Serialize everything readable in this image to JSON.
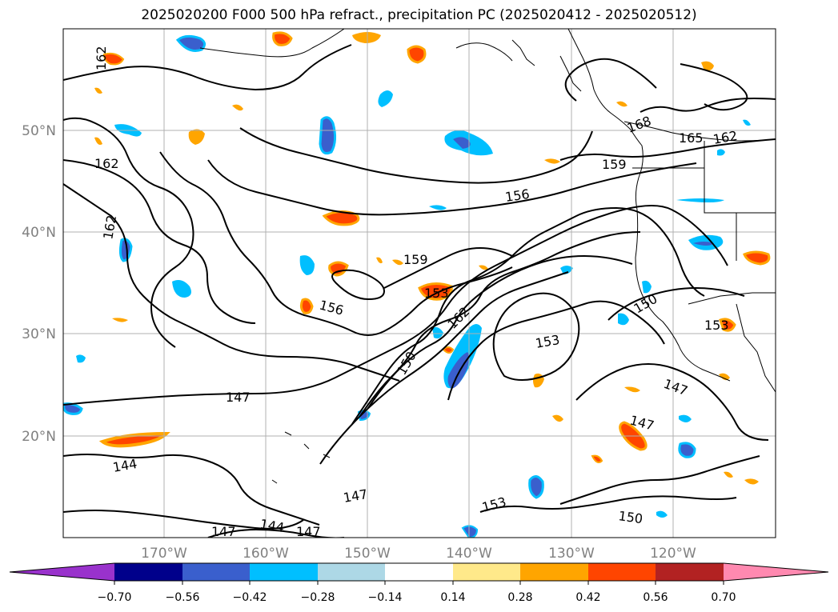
{
  "title": "2025020200 F000 500 hPa refract., precipitation PC (2025020412 - 2025020512)",
  "map": {
    "lon_labels": [
      "170°W",
      "160°W",
      "150°W",
      "140°W",
      "130°W",
      "120°W"
    ],
    "lat_labels": [
      "50°N",
      "40°N",
      "30°N",
      "20°N"
    ],
    "contour_labels": [
      "162",
      "162",
      "162",
      "159",
      "159",
      "156",
      "156",
      "153",
      "153",
      "153",
      "153",
      "150",
      "150",
      "150",
      "147",
      "147",
      "147",
      "147",
      "147",
      "147",
      "144",
      "144",
      "168",
      "165",
      "162",
      "162"
    ],
    "colors": {
      "coast": "#000000",
      "grid": "#b0b0b0",
      "contour": "#000000"
    }
  },
  "colorbar": {
    "ticks": [
      "−0.70",
      "−0.56",
      "−0.42",
      "−0.28",
      "−0.14",
      "0.14",
      "0.28",
      "0.42",
      "0.56",
      "0.70"
    ],
    "colors": [
      "#9932cc",
      "#00008b",
      "#3a5fcd",
      "#00bfff",
      "#add8e6",
      "#ffffff",
      "#ffe98a",
      "#ffa500",
      "#ff4500",
      "#b22222",
      "#ff89b0"
    ]
  }
}
